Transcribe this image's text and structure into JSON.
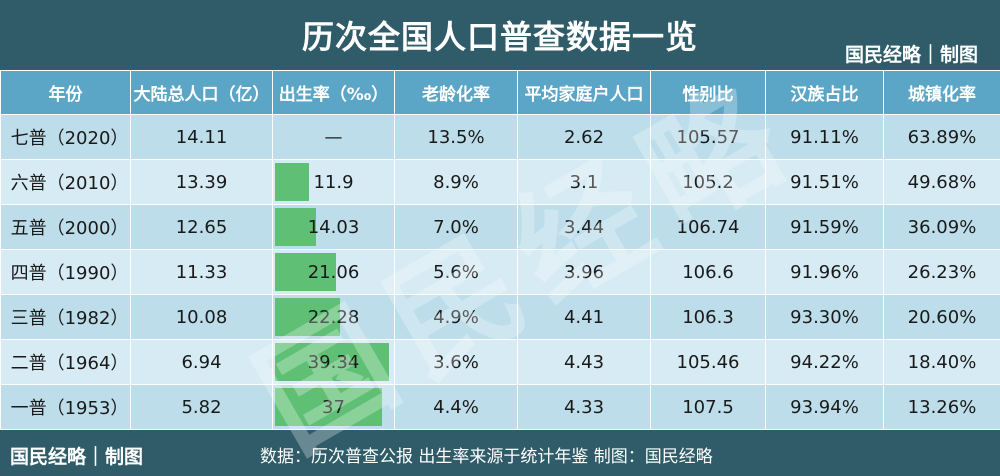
{
  "title": "历次全国人口普查数据一览",
  "brand": "国民经略｜制图",
  "watermark": "国民经略",
  "headers": [
    "年份",
    "大陆总人口（亿）",
    "出生率（‰）",
    "老龄化率",
    "平均家庭户人口",
    "性别比",
    "汉族占比",
    "城镇化率"
  ],
  "rows": [
    {
      "year": "七普（2020）",
      "population": "14.11",
      "birth_rate": "—",
      "birth_rate_value": null,
      "aging": "13.5%",
      "household": "2.62",
      "sex_ratio": "105.57",
      "han": "91.11%",
      "urban": "63.89%"
    },
    {
      "year": "六普（2010）",
      "population": "13.39",
      "birth_rate": "11.9",
      "birth_rate_value": 11.9,
      "aging": "8.9%",
      "household": "3.1",
      "sex_ratio": "105.2",
      "han": "91.51%",
      "urban": "49.68%"
    },
    {
      "year": "五普（2000）",
      "population": "12.65",
      "birth_rate": "14.03",
      "birth_rate_value": 14.03,
      "aging": "7.0%",
      "household": "3.44",
      "sex_ratio": "106.74",
      "han": "91.59%",
      "urban": "36.09%"
    },
    {
      "year": "四普（1990）",
      "population": "11.33",
      "birth_rate": "21.06",
      "birth_rate_value": 21.06,
      "aging": "5.6%",
      "household": "3.96",
      "sex_ratio": "106.6",
      "han": "91.96%",
      "urban": "26.23%"
    },
    {
      "year": "三普（1982）",
      "population": "10.08",
      "birth_rate": "22.28",
      "birth_rate_value": 22.28,
      "aging": "4.9%",
      "household": "4.41",
      "sex_ratio": "106.3",
      "han": "93.30%",
      "urban": "20.60%"
    },
    {
      "year": "二普（1964）",
      "population": "6.94",
      "birth_rate": "39.34",
      "birth_rate_value": 39.34,
      "aging": "3.6%",
      "household": "4.43",
      "sex_ratio": "105.46",
      "han": "94.22%",
      "urban": "18.40%"
    },
    {
      "year": "一普（1953）",
      "population": "5.82",
      "birth_rate": "37",
      "birth_rate_value": 37,
      "aging": "4.4%",
      "household": "4.33",
      "sex_ratio": "107.5",
      "han": "93.94%",
      "urban": "13.26%"
    }
  ],
  "footer": {
    "brand": "国民经略｜制图",
    "source": "数据：历次普查公报  出生率来源于统计年鉴  制图：国民经略"
  },
  "colors": {
    "header": "#5ba6c6",
    "title_bg": "#2f5c68",
    "bar": "#5fbf74",
    "row_odd": "#bcdde9",
    "row_even": "#d6ebf3"
  }
}
